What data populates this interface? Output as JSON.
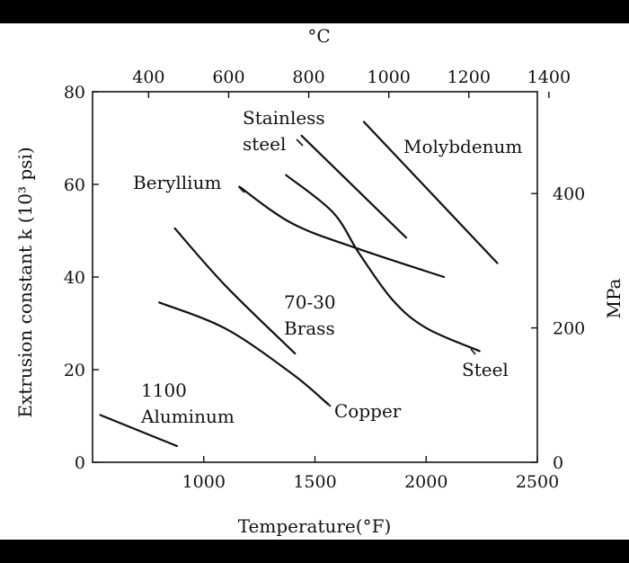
{
  "chart_data": {
    "type": "line",
    "xlabel": "Temperature(°F)",
    "ylabel": "Extrusion constant k (10³ psi)",
    "top_axis_label": "°C",
    "right_axis_label": "MPa",
    "xlim": [
      500,
      2500
    ],
    "ylim": [
      0,
      80
    ],
    "x_ticks": [
      1000,
      1500,
      2000,
      2500
    ],
    "y_ticks": [
      0,
      20,
      40,
      60,
      80
    ],
    "top_ticks_C": [
      400,
      600,
      800,
      1000,
      1200,
      1400
    ],
    "right_ticks_MPa": [
      0,
      200,
      400
    ],
    "grid": false,
    "series": [
      {
        "id": "aluminum",
        "label_lines": [
          "1100",
          "Aluminum"
        ],
        "x": [
          535,
          880
        ],
        "y": [
          10.2,
          3.5
        ]
      },
      {
        "id": "copper",
        "label_lines": [
          "Copper"
        ],
        "x": [
          800,
          1100,
          1400,
          1560
        ],
        "y": [
          34.5,
          28.8,
          19.0,
          12.5
        ]
      },
      {
        "id": "brass",
        "label_lines": [
          "70-30",
          "Brass"
        ],
        "x": [
          870,
          1100,
          1410
        ],
        "y": [
          50.5,
          38.0,
          23.5
        ]
      },
      {
        "id": "beryllium",
        "label_lines": [
          "Beryllium"
        ],
        "x": [
          1160,
          1400,
          1700,
          2080
        ],
        "y": [
          59.5,
          51.5,
          46.0,
          40.0
        ]
      },
      {
        "id": "steel",
        "label_lines": [
          "Steel"
        ],
        "x": [
          1370,
          1580,
          1700,
          1850,
          2000,
          2240
        ],
        "y": [
          62.0,
          54.0,
          45.0,
          35.0,
          29.0,
          24.0
        ]
      },
      {
        "id": "stainless",
        "label_lines": [
          "Stainless",
          "steel"
        ],
        "x": [
          1440,
          1910
        ],
        "y": [
          70.5,
          48.5
        ]
      },
      {
        "id": "molybdenum",
        "label_lines": [
          "Molybdenum"
        ],
        "x": [
          1720,
          2320
        ],
        "y": [
          73.5,
          43.0
        ]
      }
    ]
  }
}
